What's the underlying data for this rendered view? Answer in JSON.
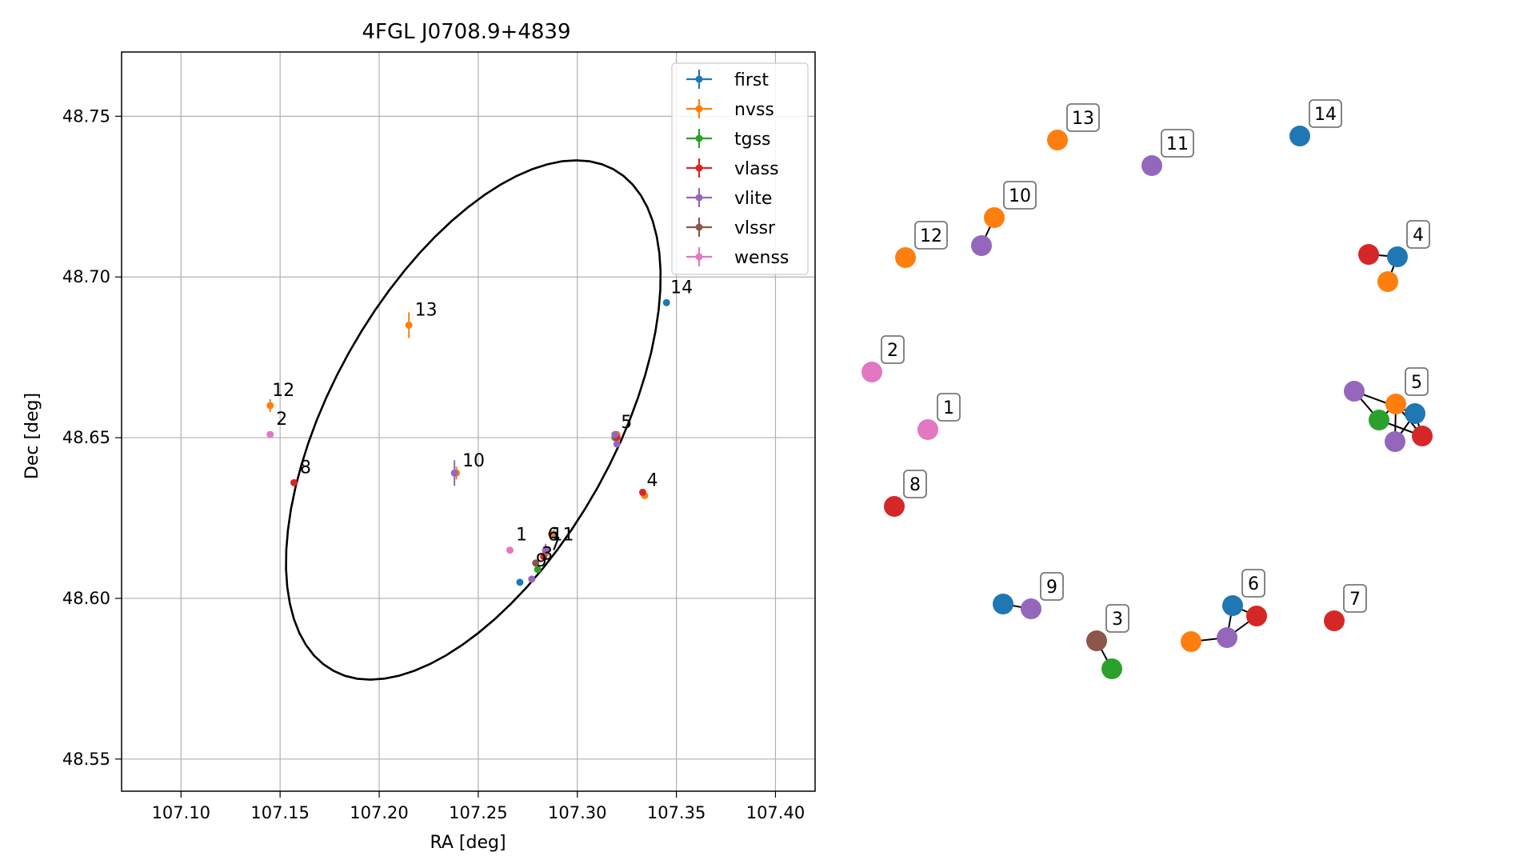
{
  "chart_data": [
    {
      "type": "scatter",
      "title": "4FGL J0708.9+4839",
      "xlabel": "RA [deg]",
      "ylabel": "Dec [deg]",
      "xlim": [
        107.07,
        107.42
      ],
      "ylim": [
        48.54,
        48.77
      ],
      "xticks": [
        107.1,
        107.15,
        107.2,
        107.25,
        107.3,
        107.35,
        107.4
      ],
      "xtick_labels": [
        "107.10",
        "107.15",
        "107.20",
        "107.25",
        "107.30",
        "107.35",
        "107.40"
      ],
      "yticks": [
        48.55,
        48.6,
        48.65,
        48.7,
        48.75
      ],
      "ytick_labels": [
        "48.55",
        "48.60",
        "48.65",
        "48.70",
        "48.75"
      ],
      "grid": true,
      "legend_position": "top-right",
      "ellipse": {
        "center": [
          107.2475,
          48.6555
        ],
        "semi_axis_ra": 0.11,
        "semi_axis_dec": 0.058,
        "angle_deg": 37
      },
      "series": [
        {
          "name": "first",
          "color": "#1f77b4",
          "points": [
            {
              "x": 107.345,
              "y": 48.692,
              "xerr": 0,
              "yerr": 0
            },
            {
              "x": 107.271,
              "y": 48.605,
              "xerr": 0,
              "yerr": 0
            },
            {
              "x": 107.288,
              "y": 48.62,
              "xerr": 0,
              "yerr": 0
            }
          ]
        },
        {
          "name": "nvss",
          "color": "#ff7f0e",
          "points": [
            {
              "x": 107.215,
              "y": 48.685,
              "xerr": 0.001,
              "yerr": 0.004
            },
            {
              "x": 107.145,
              "y": 48.66,
              "xerr": 0,
              "yerr": 0.002
            },
            {
              "x": 107.239,
              "y": 48.639,
              "xerr": 0,
              "yerr": 0.002
            },
            {
              "x": 107.32,
              "y": 48.651,
              "xerr": 0,
              "yerr": 0.001
            },
            {
              "x": 107.334,
              "y": 48.632,
              "xerr": 0,
              "yerr": 0.001
            },
            {
              "x": 107.284,
              "y": 48.614,
              "xerr": 0,
              "yerr": 0.001
            },
            {
              "x": 107.287,
              "y": 48.62,
              "xerr": 0,
              "yerr": 0.001
            }
          ]
        },
        {
          "name": "tgss",
          "color": "#2ca02c",
          "points": [
            {
              "x": 107.28,
              "y": 48.609,
              "xerr": 0,
              "yerr": 0
            },
            {
              "x": 107.319,
              "y": 48.65,
              "xerr": 0,
              "yerr": 0
            }
          ]
        },
        {
          "name": "vlass",
          "color": "#d62728",
          "points": [
            {
              "x": 107.157,
              "y": 48.636,
              "xerr": 0,
              "yerr": 0
            },
            {
              "x": 107.333,
              "y": 48.633,
              "xerr": 0,
              "yerr": 0
            },
            {
              "x": 107.32,
              "y": 48.65,
              "xerr": 0,
              "yerr": 0
            },
            {
              "x": 107.283,
              "y": 48.613,
              "xerr": 0,
              "yerr": 0
            }
          ]
        },
        {
          "name": "vlite",
          "color": "#9467bd",
          "points": [
            {
              "x": 107.238,
              "y": 48.639,
              "xerr": 0.001,
              "yerr": 0.004
            },
            {
              "x": 107.319,
              "y": 48.651,
              "xerr": 0,
              "yerr": 0.001
            },
            {
              "x": 107.32,
              "y": 48.648,
              "xerr": 0,
              "yerr": 0
            },
            {
              "x": 107.277,
              "y": 48.606,
              "xerr": 0,
              "yerr": 0
            },
            {
              "x": 107.284,
              "y": 48.615,
              "xerr": 0,
              "yerr": 0.002
            }
          ]
        },
        {
          "name": "vlssr",
          "color": "#8c564b",
          "points": [
            {
              "x": 107.279,
              "y": 48.611,
              "xerr": 0.001,
              "yerr": 0.001
            }
          ]
        },
        {
          "name": "wenss",
          "color": "#e377c2",
          "points": [
            {
              "x": 107.266,
              "y": 48.615,
              "xerr": 0,
              "yerr": 0
            },
            {
              "x": 107.145,
              "y": 48.651,
              "xerr": 0,
              "yerr": 0
            }
          ]
        }
      ],
      "point_labels": [
        {
          "text": "14",
          "x": 107.347,
          "y": 48.695
        },
        {
          "text": "13",
          "x": 107.218,
          "y": 48.688
        },
        {
          "text": "12",
          "x": 107.146,
          "y": 48.663
        },
        {
          "text": "2",
          "x": 107.148,
          "y": 48.654
        },
        {
          "text": "8",
          "x": 107.16,
          "y": 48.639
        },
        {
          "text": "10",
          "x": 107.242,
          "y": 48.641
        },
        {
          "text": "5",
          "x": 107.322,
          "y": 48.653
        },
        {
          "text": "4",
          "x": 107.335,
          "y": 48.635
        },
        {
          "text": "1",
          "x": 107.269,
          "y": 48.618
        },
        {
          "text": "6",
          "x": 107.285,
          "y": 48.618
        },
        {
          "text": "11",
          "x": 107.287,
          "y": 48.618
        },
        {
          "text": "3",
          "x": 107.282,
          "y": 48.612
        },
        {
          "text": "9",
          "x": 107.279,
          "y": 48.61
        },
        {
          "text": "7",
          "x": 107.286,
          "y": 48.615
        }
      ]
    },
    {
      "type": "network",
      "nodes": [
        {
          "id": "first-14",
          "color": "#1f77b4",
          "label": "14"
        },
        {
          "id": "nvss-13",
          "color": "#ff7f0e",
          "label": "13"
        },
        {
          "id": "vlite-11",
          "color": "#9467bd",
          "label": "11"
        },
        {
          "id": "nvss-10",
          "color": "#ff7f0e",
          "label": "10"
        },
        {
          "id": "vlite-10",
          "color": "#9467bd",
          "label": ""
        },
        {
          "id": "nvss-12",
          "color": "#ff7f0e",
          "label": "12"
        },
        {
          "id": "vlass-4",
          "color": "#d62728",
          "label": ""
        },
        {
          "id": "first-4",
          "color": "#1f77b4",
          "label": "4"
        },
        {
          "id": "nvss-4",
          "color": "#ff7f0e",
          "label": ""
        },
        {
          "id": "wenss-2",
          "color": "#e377c2",
          "label": "2"
        },
        {
          "id": "wenss-1",
          "color": "#e377c2",
          "label": "1"
        },
        {
          "id": "vlite-5a",
          "color": "#9467bd",
          "label": ""
        },
        {
          "id": "nvss-5",
          "color": "#ff7f0e",
          "label": "5"
        },
        {
          "id": "first-5",
          "color": "#1f77b4",
          "label": ""
        },
        {
          "id": "tgss-5",
          "color": "#2ca02c",
          "label": ""
        },
        {
          "id": "vlite-5b",
          "color": "#9467bd",
          "label": ""
        },
        {
          "id": "vlass-5",
          "color": "#d62728",
          "label": ""
        },
        {
          "id": "vlass-8",
          "color": "#d62728",
          "label": "8"
        },
        {
          "id": "first-9",
          "color": "#1f77b4",
          "label": ""
        },
        {
          "id": "vlite-9",
          "color": "#9467bd",
          "label": "9"
        },
        {
          "id": "vlssr-3",
          "color": "#8c564b",
          "label": "3"
        },
        {
          "id": "tgss-3",
          "color": "#2ca02c",
          "label": ""
        },
        {
          "id": "nvss-6",
          "color": "#ff7f0e",
          "label": ""
        },
        {
          "id": "vlite-6",
          "color": "#9467bd",
          "label": ""
        },
        {
          "id": "first-6",
          "color": "#1f77b4",
          "label": "6"
        },
        {
          "id": "vlass-6",
          "color": "#d62728",
          "label": ""
        },
        {
          "id": "vlass-7",
          "color": "#d62728",
          "label": "7"
        }
      ],
      "edges": [
        [
          "nvss-10",
          "vlite-10"
        ],
        [
          "vlass-4",
          "first-4"
        ],
        [
          "first-4",
          "nvss-4"
        ],
        [
          "vlite-5a",
          "first-5"
        ],
        [
          "vlite-5a",
          "tgss-5"
        ],
        [
          "nvss-5",
          "tgss-5"
        ],
        [
          "nvss-5",
          "vlite-5b"
        ],
        [
          "nvss-5",
          "vlass-5"
        ],
        [
          "first-5",
          "vlite-5b"
        ],
        [
          "tgss-5",
          "vlass-5"
        ],
        [
          "first-5",
          "vlass-5"
        ],
        [
          "first-9",
          "vlite-9"
        ],
        [
          "vlssr-3",
          "tgss-3"
        ],
        [
          "nvss-6",
          "vlite-6"
        ],
        [
          "vlite-6",
          "first-6"
        ],
        [
          "first-6",
          "vlass-6"
        ],
        [
          "vlite-6",
          "vlass-6"
        ]
      ]
    }
  ]
}
